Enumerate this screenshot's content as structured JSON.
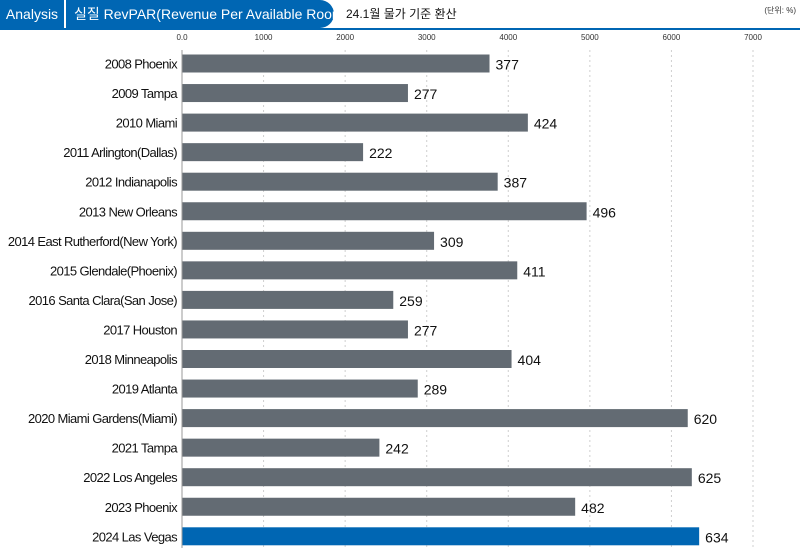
{
  "header": {
    "section": "Analysis",
    "title": "실질 RevPAR(Revenue Per Available Room)",
    "note": "24.1월 물가 기준 환산",
    "unit": "(단위: %)"
  },
  "colors": {
    "header_blue": "#0066b3",
    "bar_default": "#636b73",
    "bar_highlight": "#0066b3",
    "gridline": "#cfcfcf"
  },
  "chart_data": {
    "type": "bar",
    "orientation": "horizontal",
    "title": "",
    "xlabel": "",
    "ylabel": "",
    "xlim": [
      0,
      7000
    ],
    "ticks": [
      0,
      1000,
      2000,
      3000,
      4000,
      5000,
      6000,
      7000
    ],
    "tick_labels": [
      "0.0",
      "1000",
      "2000",
      "3000",
      "4000",
      "5000",
      "6000",
      "7000"
    ],
    "grid": true,
    "value_scale": 10,
    "categories": [
      "2008 Phoenix",
      "2009 Tampa",
      "2010 Miami",
      "2011 Arlington(Dallas)",
      "2012 Indianapolis",
      "2013 New Orleans",
      "2014 East Rutherford(New York)",
      "2015 Glendale(Phoenix)",
      "2016 Santa Clara(San Jose)",
      "2017 Houston",
      "2018 Minneapolis",
      "2019 Atlanta",
      "2020 Miami Gardens(Miami)",
      "2021 Tampa",
      "2022 Los Angeles",
      "2023 Phoenix",
      "2024 Las Vegas"
    ],
    "values": [
      377,
      277,
      424,
      222,
      387,
      496,
      309,
      411,
      259,
      277,
      404,
      289,
      620,
      242,
      625,
      482,
      634
    ],
    "highlight": "2024 Las Vegas"
  }
}
